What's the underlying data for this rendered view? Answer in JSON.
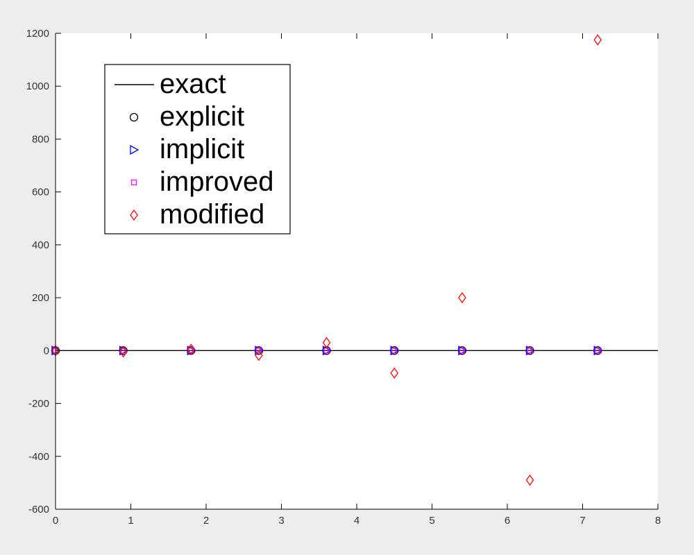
{
  "chart_data": {
    "type": "scatter",
    "title": "",
    "xlabel": "",
    "ylabel": "",
    "xlim": [
      0,
      8
    ],
    "ylim": [
      -600,
      1200
    ],
    "xticks": [
      0,
      1,
      2,
      3,
      4,
      5,
      6,
      7,
      8
    ],
    "yticks": [
      -600,
      -400,
      -200,
      0,
      200,
      400,
      600,
      800,
      1000,
      1200
    ],
    "grid": false,
    "legend_position": "top-left",
    "x": [
      0,
      0.9,
      1.8,
      2.7,
      3.6,
      4.5,
      5.4,
      6.3,
      7.2
    ],
    "series": [
      {
        "name": "exact",
        "kind": "line",
        "color": "#000000",
        "marker": "none",
        "values": [
          0,
          0,
          0,
          0,
          0,
          0,
          0,
          0,
          0
        ]
      },
      {
        "name": "explicit",
        "kind": "markers",
        "color": "#000000",
        "marker": "circle",
        "values": [
          0,
          0,
          0,
          0,
          0,
          0,
          0,
          0,
          0
        ]
      },
      {
        "name": "implicit",
        "kind": "markers",
        "color": "#0000ff",
        "marker": "triangle-right",
        "values": [
          0,
          0,
          0,
          0,
          0,
          0,
          0,
          0,
          0
        ]
      },
      {
        "name": "improved",
        "kind": "markers",
        "color": "#ff00ff",
        "marker": "square",
        "values": [
          0,
          0,
          0,
          0,
          0,
          0,
          0,
          0,
          0
        ]
      },
      {
        "name": "modified",
        "kind": "markers",
        "color": "#ff0000",
        "marker": "diamond",
        "values": [
          0,
          -5,
          5,
          -18,
          30,
          -85,
          200,
          -490,
          1175
        ]
      }
    ]
  }
}
